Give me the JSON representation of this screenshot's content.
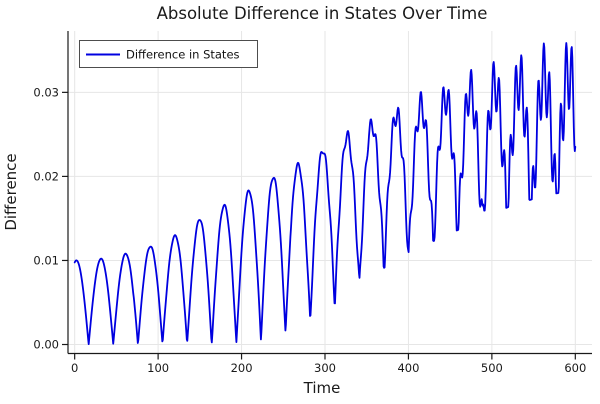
{
  "chart_data": {
    "type": "line",
    "title": "Absolute Difference in States Over Time",
    "xlabel": "Time",
    "ylabel": "Difference",
    "xlim": [
      -8,
      620
    ],
    "ylim": [
      -0.00107,
      0.0373
    ],
    "grid": true,
    "grid_color": "#e6e6e6",
    "axis_color": "#1a1a1a",
    "background_color": "#ffffff",
    "xticks": {
      "values": [
        0,
        100,
        200,
        300,
        400,
        500,
        600
      ],
      "labels": [
        "0",
        "100",
        "200",
        "300",
        "400",
        "500",
        "600"
      ]
    },
    "yticks": {
      "values": [
        0.0,
        0.01,
        0.02,
        0.03
      ],
      "labels": [
        "0.00",
        "0.01",
        "0.02",
        "0.03"
      ]
    },
    "legend": {
      "position": "top-left",
      "entries": [
        {
          "label": "Difference in States",
          "color": "#0000e0"
        }
      ]
    },
    "series": [
      {
        "name": "Difference in States",
        "color": "#0000e0",
        "line_width": 1.8,
        "model": {
          "t_start": 0,
          "t_end": 600,
          "dt": 0.6,
          "oscillation_period": 59,
          "peak_time_offset": 2,
          "abs": true,
          "envelope_peaks": [
            [
              0,
              0.01
            ],
            [
              30,
              0.0102
            ],
            [
              60,
              0.0108
            ],
            [
              90,
              0.0117
            ],
            [
              120,
              0.013
            ],
            [
              150,
              0.015
            ],
            [
              185,
              0.017
            ],
            [
              220,
              0.0191
            ],
            [
              255,
              0.0209
            ],
            [
              290,
              0.0229
            ],
            [
              310,
              0.0246
            ],
            [
              340,
              0.0262
            ],
            [
              370,
              0.0278
            ],
            [
              400,
              0.0294
            ],
            [
              430,
              0.0308
            ],
            [
              460,
              0.0322
            ],
            [
              490,
              0.0334
            ],
            [
              520,
              0.0345
            ],
            [
              555,
              0.0356
            ],
            [
              585,
              0.0366
            ],
            [
              600,
              0.0368
            ]
          ],
          "envelope_valleys": [
            [
              0,
              0.0
            ],
            [
              200,
              0.0002
            ],
            [
              230,
              0.0008
            ],
            [
              260,
              0.0017
            ],
            [
              290,
              0.0035
            ],
            [
              320,
              0.0058
            ],
            [
              350,
              0.0084
            ],
            [
              380,
              0.0106
            ],
            [
              410,
              0.0124
            ],
            [
              445,
              0.0141
            ],
            [
              483,
              0.016
            ],
            [
              520,
              0.0178
            ],
            [
              560,
              0.0192
            ],
            [
              600,
              0.02
            ]
          ],
          "ripple_period": 6.7,
          "ripple_phase": 0.5,
          "ripple_amplitude": [
            [
              0,
              0.0
            ],
            [
              260,
              0.0003
            ],
            [
              300,
              0.0008
            ],
            [
              340,
              0.0015
            ],
            [
              380,
              0.0024
            ],
            [
              420,
              0.0034
            ],
            [
              460,
              0.0046
            ],
            [
              500,
              0.0058
            ],
            [
              540,
              0.0072
            ],
            [
              600,
              0.009
            ]
          ],
          "y_max_clamp": 0.0369
        }
      }
    ]
  }
}
